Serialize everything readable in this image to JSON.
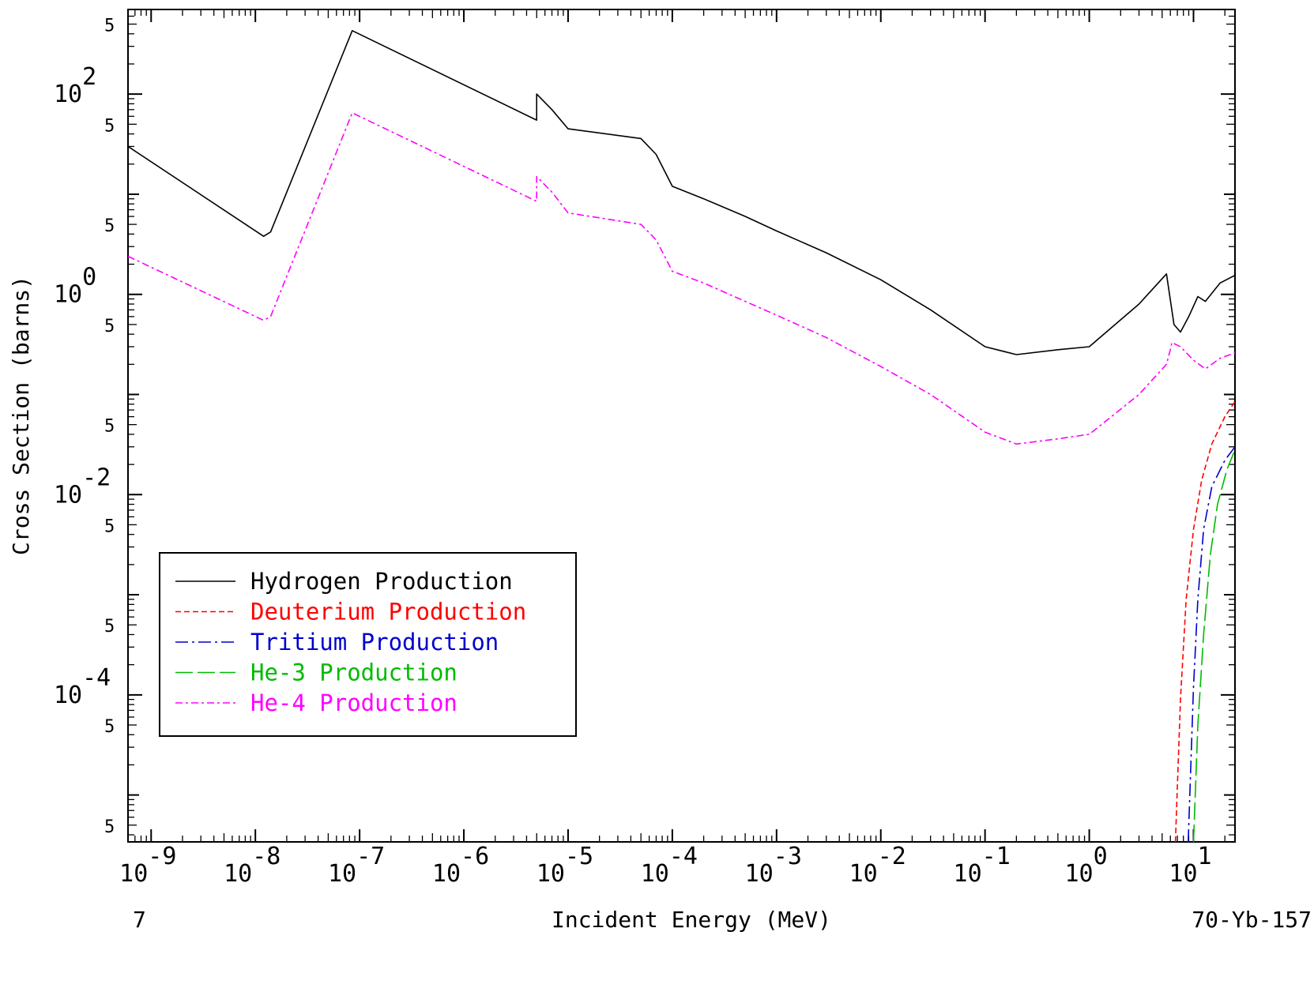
{
  "chart_data": {
    "type": "line",
    "title": "",
    "xlabel": "Incident Energy (MeV)",
    "ylabel": "Cross Section (barns)",
    "x_scale": "log",
    "y_scale": "log",
    "xlim": [
      6e-10,
      25.0
    ],
    "ylim": [
      3.4e-06,
      700
    ],
    "corner_left_label": "7",
    "corner_right_label": "70-Yb-157",
    "x_major_ticks": [
      {
        "value": 1e-09,
        "base": "10",
        "exp": "-9"
      },
      {
        "value": 1e-08,
        "base": "10",
        "exp": "-8"
      },
      {
        "value": 1e-07,
        "base": "10",
        "exp": "-7"
      },
      {
        "value": 1e-06,
        "base": "10",
        "exp": "-6"
      },
      {
        "value": 1e-05,
        "base": "10",
        "exp": "-5"
      },
      {
        "value": 0.0001,
        "base": "10",
        "exp": "-4"
      },
      {
        "value": 0.001,
        "base": "10",
        "exp": "-3"
      },
      {
        "value": 0.01,
        "base": "10",
        "exp": "-2"
      },
      {
        "value": 0.1,
        "base": "10",
        "exp": "-1"
      },
      {
        "value": 1,
        "base": "10",
        "exp": "0"
      },
      {
        "value": 10,
        "base": "10",
        "exp": "1"
      }
    ],
    "y_major_ticks": [
      {
        "value": 100,
        "base": "10",
        "exp": "2"
      },
      {
        "value": 1,
        "base": "10",
        "exp": "0"
      },
      {
        "value": 0.01,
        "base": "10",
        "exp": "-2"
      },
      {
        "value": 0.0001,
        "base": "10",
        "exp": "-4"
      }
    ],
    "y_minor_labeled": [
      {
        "value": 500,
        "label": "5"
      },
      {
        "value": 50,
        "label": "5"
      },
      {
        "value": 5,
        "label": "5"
      },
      {
        "value": 0.5,
        "label": "5"
      },
      {
        "value": 0.05,
        "label": "5"
      },
      {
        "value": 0.005,
        "label": "5"
      },
      {
        "value": 0.0005,
        "label": "5"
      },
      {
        "value": 5e-05,
        "label": "5"
      },
      {
        "value": 5e-06,
        "label": "5"
      }
    ],
    "y_plain_ticks": [
      10,
      0.1,
      0.001,
      1e-05
    ],
    "legend": {
      "placement": "lower-left",
      "entries": [
        {
          "name": "Hydrogen Production",
          "color": "#000000",
          "dash": "solid"
        },
        {
          "name": "Deuterium Production",
          "color": "#ff0000",
          "dash": "short-dash"
        },
        {
          "name": "Tritium Production",
          "color": "#0000cc",
          "dash": "dash-dot"
        },
        {
          "name": "He-3 Production",
          "color": "#00bb00",
          "dash": "long-dash"
        },
        {
          "name": "He-4 Production",
          "color": "#ff00ff",
          "dash": "dash-dot-dot"
        }
      ]
    },
    "series": [
      {
        "name": "Hydrogen Production",
        "color": "#000000",
        "points": [
          [
            6e-10,
            30
          ],
          [
            1.2e-08,
            3.8
          ],
          [
            1.4e-08,
            4.2
          ],
          [
            8.5e-08,
            430
          ],
          [
            5e-06,
            55
          ],
          [
            5e-06,
            100
          ],
          [
            7e-06,
            70
          ],
          [
            1e-05,
            45
          ],
          [
            5e-05,
            36
          ],
          [
            7e-05,
            25
          ],
          [
            0.0001,
            12
          ],
          [
            0.0002,
            9
          ],
          [
            0.0005,
            6
          ],
          [
            0.001,
            4.3
          ],
          [
            0.003,
            2.6
          ],
          [
            0.01,
            1.4
          ],
          [
            0.03,
            0.7
          ],
          [
            0.1,
            0.3
          ],
          [
            0.2,
            0.25
          ],
          [
            0.5,
            0.28
          ],
          [
            1.0,
            0.3
          ],
          [
            3.0,
            0.8
          ],
          [
            5.5,
            1.6
          ],
          [
            6.5,
            0.5
          ],
          [
            7.5,
            0.42
          ],
          [
            9.0,
            0.6
          ],
          [
            11.0,
            0.95
          ],
          [
            13.0,
            0.85
          ],
          [
            18.0,
            1.3
          ],
          [
            25.0,
            1.55
          ]
        ]
      },
      {
        "name": "He-4 Production",
        "color": "#ff00ff",
        "points": [
          [
            6e-10,
            2.4
          ],
          [
            1.2e-08,
            0.55
          ],
          [
            1.4e-08,
            0.6
          ],
          [
            8.5e-08,
            65
          ],
          [
            5e-06,
            8.5
          ],
          [
            5e-06,
            15
          ],
          [
            7e-06,
            10.5
          ],
          [
            1e-05,
            6.5
          ],
          [
            5e-05,
            5
          ],
          [
            7e-05,
            3.5
          ],
          [
            0.0001,
            1.7
          ],
          [
            0.0002,
            1.3
          ],
          [
            0.0005,
            0.85
          ],
          [
            0.001,
            0.62
          ],
          [
            0.003,
            0.37
          ],
          [
            0.01,
            0.19
          ],
          [
            0.03,
            0.1
          ],
          [
            0.1,
            0.042
          ],
          [
            0.2,
            0.032
          ],
          [
            0.5,
            0.036
          ],
          [
            1.0,
            0.04
          ],
          [
            3.0,
            0.1
          ],
          [
            5.5,
            0.2
          ],
          [
            6.0,
            0.28
          ],
          [
            6.2,
            0.33
          ],
          [
            7.5,
            0.3
          ],
          [
            10.0,
            0.22
          ],
          [
            13.0,
            0.18
          ],
          [
            18.0,
            0.23
          ],
          [
            25.0,
            0.26
          ]
        ]
      },
      {
        "name": "Deuterium Production",
        "color": "#ff0000",
        "points": [
          [
            6.7,
            3.4e-06
          ],
          [
            7.5,
            9e-05
          ],
          [
            8.5,
            0.0009
          ],
          [
            10.0,
            0.0045
          ],
          [
            12.0,
            0.014
          ],
          [
            15.0,
            0.032
          ],
          [
            20.0,
            0.06
          ],
          [
            25.0,
            0.085
          ]
        ]
      },
      {
        "name": "Tritium Production",
        "color": "#0000cc",
        "points": [
          [
            8.9,
            3.4e-06
          ],
          [
            10.0,
            0.00012
          ],
          [
            11.0,
            0.0009
          ],
          [
            12.5,
            0.0045
          ],
          [
            15.0,
            0.012
          ],
          [
            20.0,
            0.022
          ],
          [
            25.0,
            0.03
          ]
        ]
      },
      {
        "name": "He-3 Production",
        "color": "#00bb00",
        "points": [
          [
            10.0,
            3.4e-06
          ],
          [
            11.0,
            5e-05
          ],
          [
            12.5,
            0.0004
          ],
          [
            14.5,
            0.0025
          ],
          [
            17.0,
            0.008
          ],
          [
            21.0,
            0.018
          ],
          [
            25.0,
            0.028
          ]
        ]
      }
    ]
  }
}
